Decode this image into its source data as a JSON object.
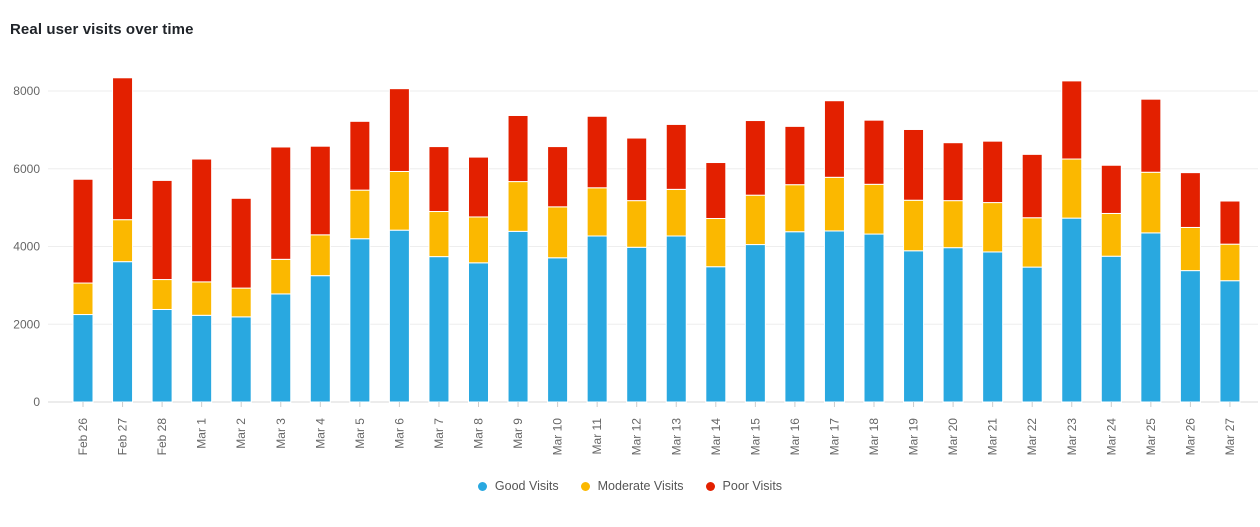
{
  "chart_title": "Real user visits over time",
  "chart_data": {
    "type": "bar",
    "stacked": true,
    "title": "Real user visits over time",
    "xlabel": "",
    "ylabel": "",
    "ylim": [
      0,
      8600
    ],
    "yticks": [
      0,
      2000,
      4000,
      6000,
      8000
    ],
    "grid": true,
    "legend_position": "bottom",
    "categories": [
      "Feb 26",
      "Feb 27",
      "Feb 28",
      "Mar 1",
      "Mar 2",
      "Mar 3",
      "Mar 4",
      "Mar 5",
      "Mar 6",
      "Mar 7",
      "Mar 8",
      "Mar 9",
      "Mar 10",
      "Mar 11",
      "Mar 12",
      "Mar 13",
      "Mar 14",
      "Mar 15",
      "Mar 16",
      "Mar 17",
      "Mar 18",
      "Mar 19",
      "Mar 20",
      "Mar 21",
      "Mar 22",
      "Mar 23",
      "Mar 24",
      "Mar 25",
      "Mar 26",
      "Mar 27"
    ],
    "series": [
      {
        "name": "Good Visits",
        "color": "#29a8e0",
        "values": [
          2250,
          3610,
          2380,
          2230,
          2190,
          2780,
          3250,
          4200,
          4420,
          3740,
          3580,
          4390,
          3710,
          4270,
          3980,
          4270,
          3480,
          4050,
          4380,
          4400,
          4320,
          3890,
          3970,
          3860,
          3470,
          4730,
          3750,
          4350,
          3380,
          3120
        ]
      },
      {
        "name": "Moderate Visits",
        "color": "#fbb800",
        "values": [
          810,
          1080,
          770,
          860,
          740,
          890,
          1050,
          1250,
          1510,
          1160,
          1180,
          1280,
          1310,
          1240,
          1200,
          1200,
          1240,
          1270,
          1210,
          1380,
          1280,
          1300,
          1210,
          1270,
          1270,
          1520,
          1100,
          1560,
          1110,
          940
        ]
      },
      {
        "name": "Poor Visits",
        "color": "#e32000",
        "values": [
          2670,
          3650,
          2550,
          3160,
          2310,
          2890,
          2280,
          1770,
          2130,
          1670,
          1540,
          1700,
          1550,
          1840,
          1610,
          1670,
          1440,
          1920,
          1500,
          1970,
          1650,
          1820,
          1490,
          1580,
          1630,
          2010,
          1240,
          1880,
          1410,
          1110
        ]
      }
    ]
  }
}
